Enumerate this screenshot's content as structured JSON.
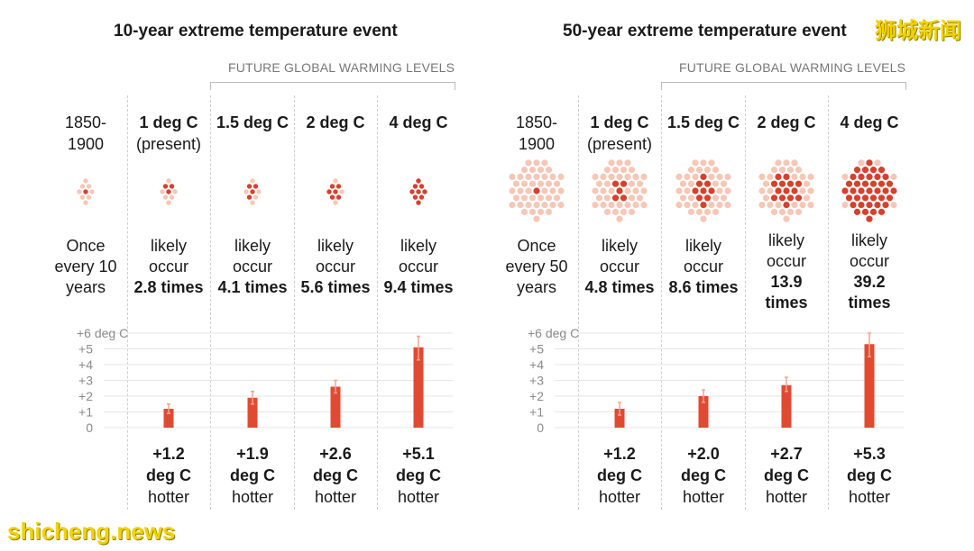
{
  "watermarks": {
    "top_right": "狮城新闻",
    "bottom_left": "shicheng.news"
  },
  "colors": {
    "dot_light": "#f6c7b6",
    "dot_dark": "#d93f2a",
    "bar": "#e04a33",
    "error": "#f2a48f",
    "grid": "#e6e6e6"
  },
  "panels": [
    {
      "title": "10-year extreme temperature event",
      "future_label": "FUTURE GLOBAL WARMING LEVELS",
      "columns": [
        {
          "head_main": "1850-",
          "head_sub": "1900",
          "head_bold": false,
          "freq_lines": [
            "Once",
            "every 10",
            "years"
          ],
          "freq_bold": "",
          "hot_value": "",
          "hot_unit": "",
          "hot_word": "",
          "dots_total": 9,
          "dots_red": 1
        },
        {
          "head_main": "1 deg C",
          "head_sub": "(present)",
          "head_bold": true,
          "freq_lines": [
            "likely",
            "occur"
          ],
          "freq_bold": "2.8 times",
          "hot_value": "+1.2",
          "hot_unit": "deg C",
          "hot_word": "hotter",
          "dots_total": 9,
          "dots_red": 3
        },
        {
          "head_main": "1.5 deg C",
          "head_sub": "",
          "head_bold": true,
          "freq_lines": [
            "likely",
            "occur"
          ],
          "freq_bold": "4.1 times",
          "hot_value": "+1.9",
          "hot_unit": "deg C",
          "hot_word": "hotter",
          "dots_total": 9,
          "dots_red": 4
        },
        {
          "head_main": "2 deg C",
          "head_sub": "",
          "head_bold": true,
          "freq_lines": [
            "likely",
            "occur"
          ],
          "freq_bold": "5.6 times",
          "hot_value": "+2.6",
          "hot_unit": "deg C",
          "hot_word": "hotter",
          "dots_total": 9,
          "dots_red": 6
        },
        {
          "head_main": "4 deg C",
          "head_sub": "",
          "head_bold": true,
          "freq_lines": [
            "likely",
            "occur"
          ],
          "freq_bold": "9.4 times",
          "hot_value": "+5.1",
          "hot_unit": "deg C",
          "hot_word": "hotter",
          "dots_total": 9,
          "dots_red": 9
        }
      ]
    },
    {
      "title": "50-year extreme temperature event",
      "future_label": "FUTURE GLOBAL WARMING LEVELS",
      "columns": [
        {
          "head_main": "1850-",
          "head_sub": "1900",
          "head_bold": false,
          "freq_lines": [
            "Once",
            "every 50",
            "years"
          ],
          "freq_bold": "",
          "hot_value": "",
          "hot_unit": "",
          "hot_word": "",
          "dots_total": 45,
          "dots_red": 1
        },
        {
          "head_main": "1 deg C",
          "head_sub": "(present)",
          "head_bold": true,
          "freq_lines": [
            "likely",
            "occur"
          ],
          "freq_bold": "4.8 times",
          "hot_value": "+1.2",
          "hot_unit": "deg C",
          "hot_word": "hotter",
          "dots_total": 45,
          "dots_red": 5
        },
        {
          "head_main": "1.5 deg C",
          "head_sub": "",
          "head_bold": true,
          "freq_lines": [
            "likely",
            "occur"
          ],
          "freq_bold": "8.6 times",
          "hot_value": "+2.0",
          "hot_unit": "deg C",
          "hot_word": "hotter",
          "dots_total": 45,
          "dots_red": 9
        },
        {
          "head_main": "2 deg C",
          "head_sub": "",
          "head_bold": true,
          "freq_lines": [
            "likely",
            "occur",
            "13.9"
          ],
          "freq_bold": "times",
          "hot_value": "+2.7",
          "hot_unit": "deg C",
          "hot_word": "hotter",
          "dots_total": 45,
          "dots_red": 14
        },
        {
          "head_main": "4 deg C",
          "head_sub": "",
          "head_bold": true,
          "freq_lines": [
            "likely",
            "occur",
            "39.2"
          ],
          "freq_bold": "times",
          "hot_value": "+5.3",
          "hot_unit": "deg C",
          "hot_word": "hotter",
          "dots_total": 45,
          "dots_red": 39
        }
      ]
    }
  ],
  "chart_data": [
    {
      "type": "bar",
      "title": "10-year extreme temperature event",
      "categories": [
        "1 deg C (present)",
        "1.5 deg C",
        "2 deg C",
        "4 deg C"
      ],
      "values": [
        1.2,
        1.9,
        2.6,
        5.1
      ],
      "error_low": [
        0.9,
        1.5,
        2.2,
        4.3
      ],
      "error_high": [
        1.5,
        2.3,
        3.0,
        5.8
      ],
      "ylabel": "deg C",
      "yticks": [
        "0",
        "+1",
        "+2",
        "+3",
        "+4",
        "+5",
        "+6 deg C"
      ],
      "ylim": [
        0,
        6
      ]
    },
    {
      "type": "bar",
      "title": "50-year extreme temperature event",
      "categories": [
        "1 deg C (present)",
        "1.5 deg C",
        "2 deg C",
        "4 deg C"
      ],
      "values": [
        1.2,
        2.0,
        2.7,
        5.3
      ],
      "error_low": [
        0.8,
        1.6,
        2.3,
        4.5
      ],
      "error_high": [
        1.6,
        2.4,
        3.2,
        6.0
      ],
      "ylabel": "deg C",
      "yticks": [
        "0",
        "+1",
        "+2",
        "+3",
        "+4",
        "+5",
        "+6 deg C"
      ],
      "ylim": [
        0,
        6
      ]
    }
  ]
}
